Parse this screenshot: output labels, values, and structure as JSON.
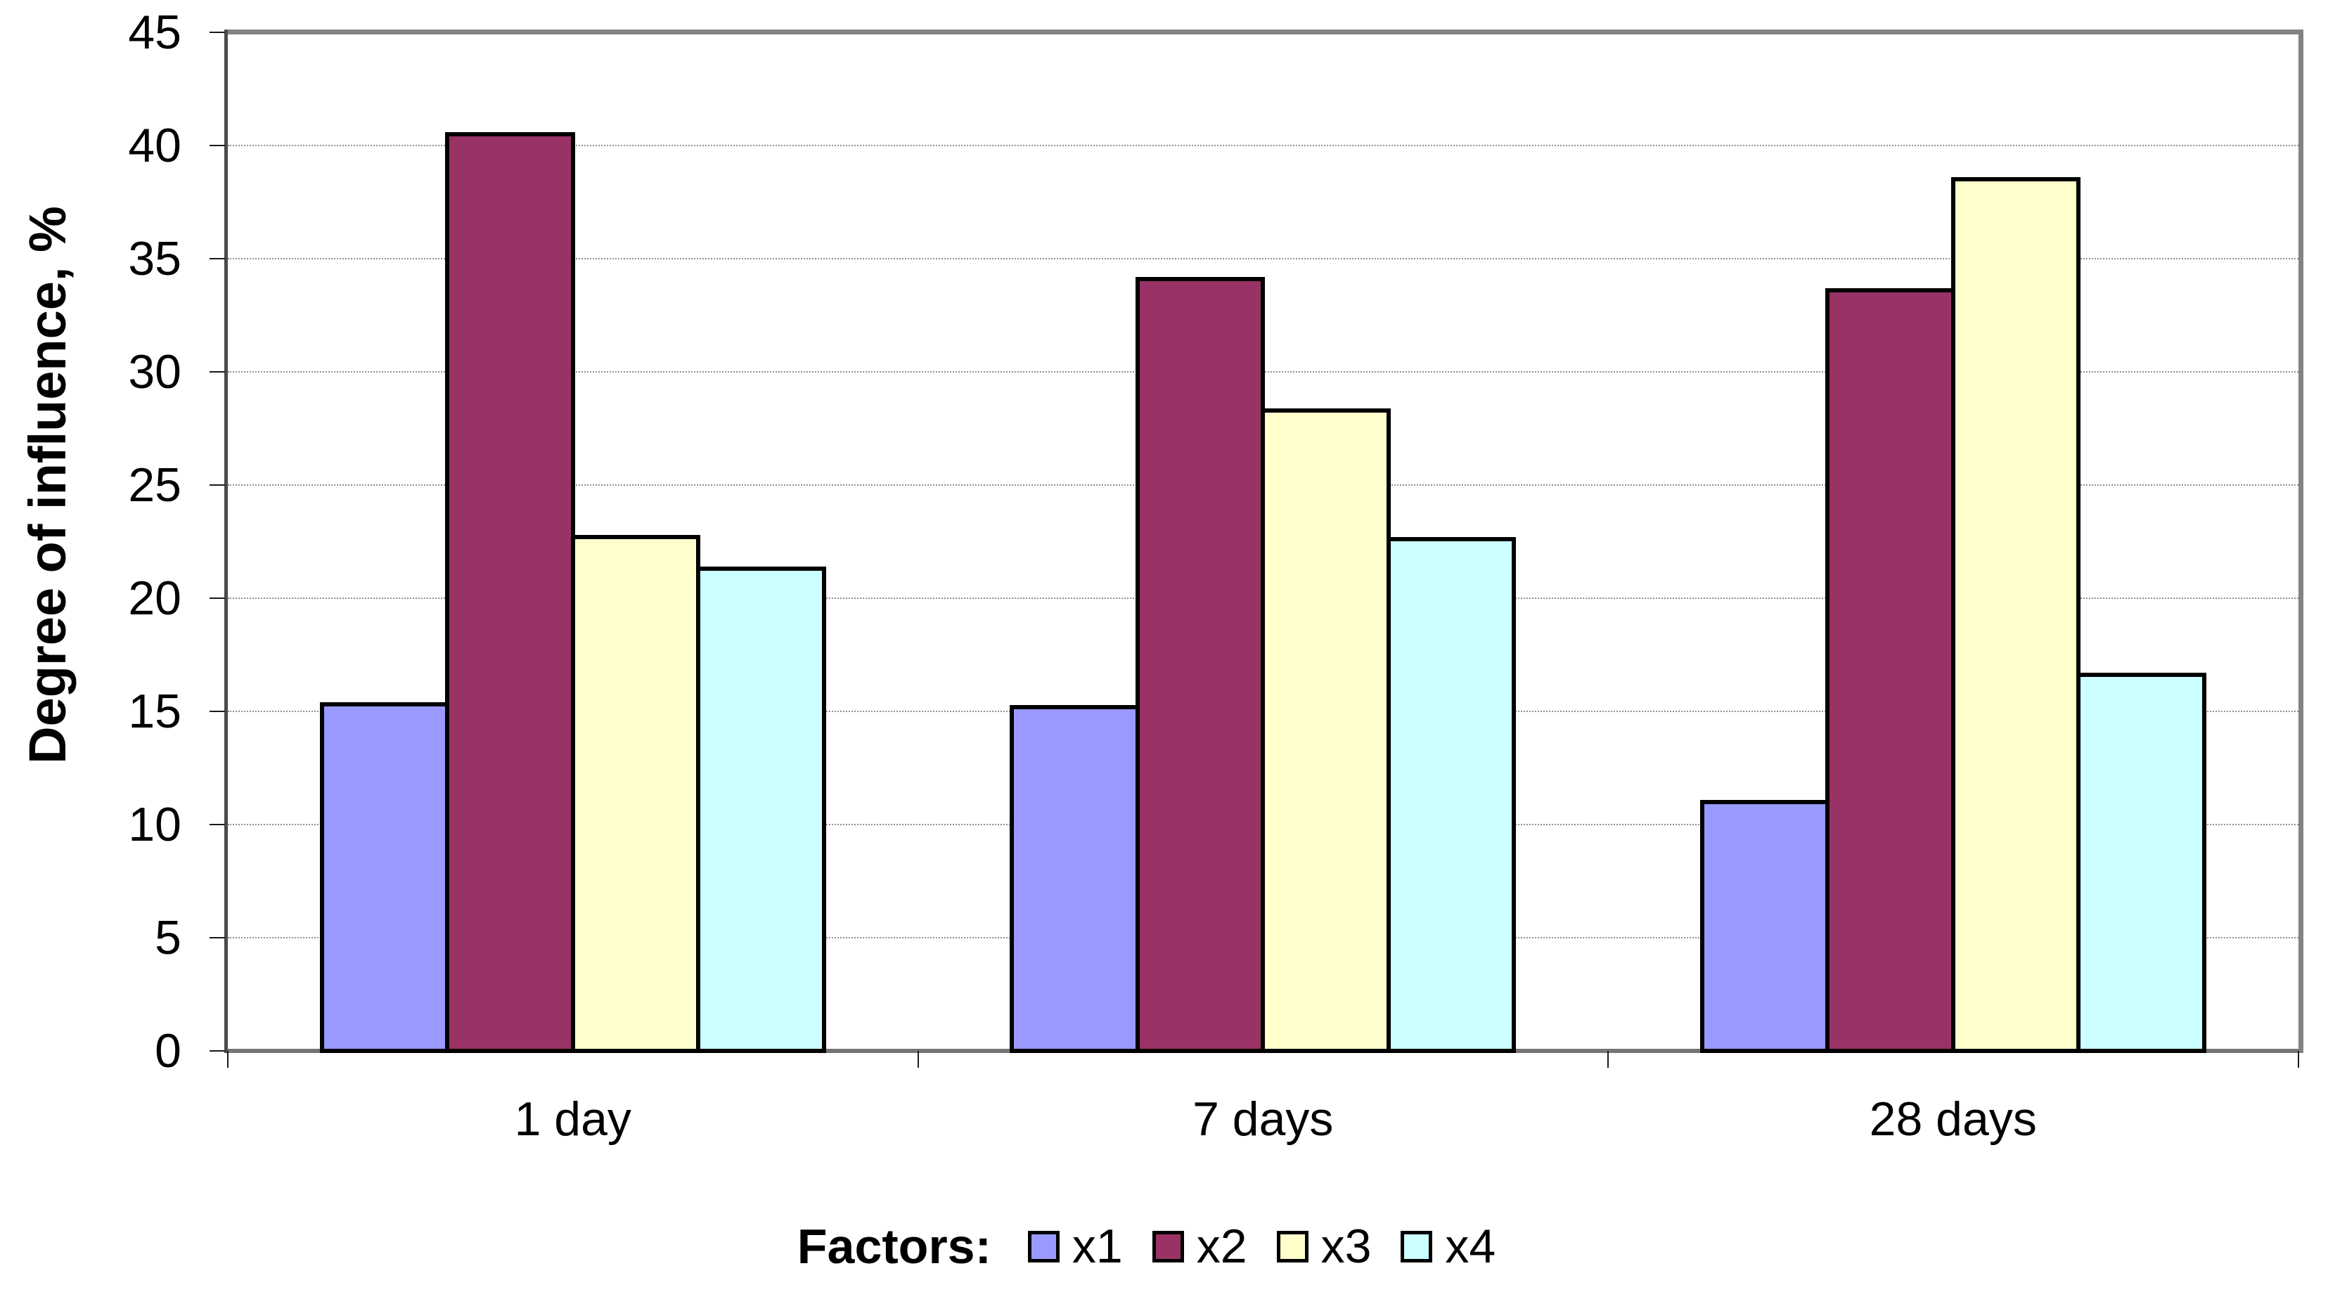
{
  "chart_data": {
    "type": "bar",
    "ylabel": "Degree of influence, %",
    "xlabel": "",
    "legend_title": "Factors:",
    "legend_position": "bottom",
    "categories": [
      "1 day",
      "7 days",
      "28 days"
    ],
    "series": [
      {
        "name": "x1",
        "color": "#9999FF",
        "values": [
          15.3,
          15.2,
          11.0
        ]
      },
      {
        "name": "x2",
        "color": "#993366",
        "values": [
          40.5,
          34.1,
          33.6
        ]
      },
      {
        "name": "x3",
        "color": "#FFFFCC",
        "values": [
          22.7,
          28.3,
          38.5
        ]
      },
      {
        "name": "x4",
        "color": "#CCFFFF",
        "values": [
          21.3,
          22.6,
          16.6
        ]
      }
    ],
    "ylim": [
      0,
      45
    ],
    "ytick_step": 5,
    "yticks": [
      0,
      5,
      10,
      15,
      20,
      25,
      30,
      35,
      40,
      45
    ],
    "grid": "horizontal-dotted",
    "bar_border_color": "#000000",
    "plot_frame_color": "#828282",
    "gridline_color": "#8f8f8f"
  }
}
